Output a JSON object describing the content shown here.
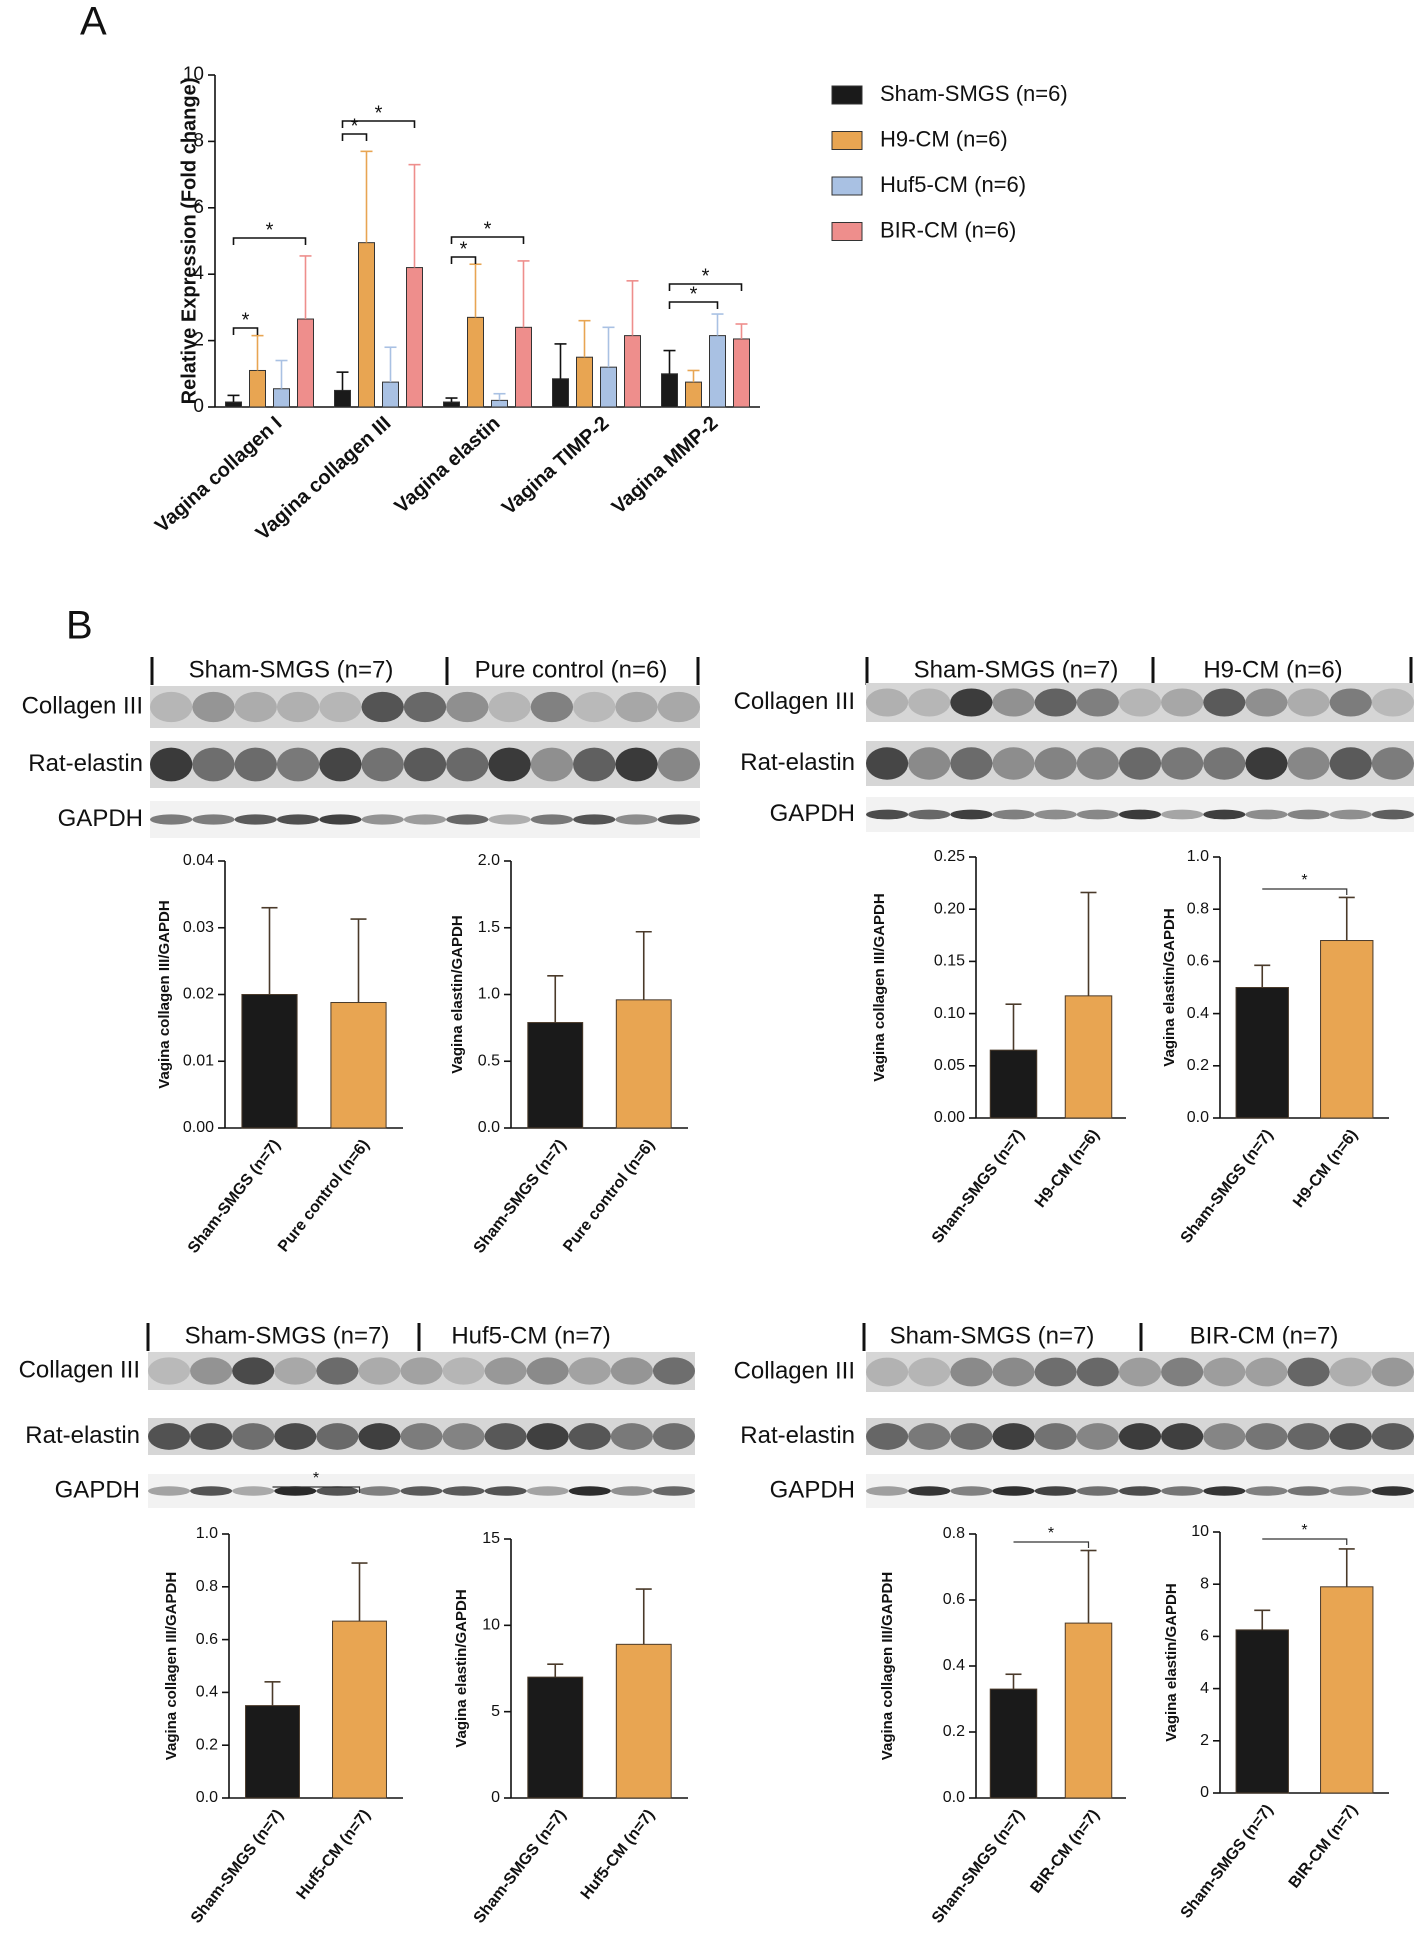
{
  "panel_labels": [
    "A",
    "B"
  ],
  "chart_data": [
    {
      "type": "bar",
      "ylabel": "Relative Expression (Fold change)",
      "categories": [
        "Vagina collagen I",
        "Vagina collagen III",
        "Vagina elastin",
        "Vagina TIMP-2",
        "Vagina MMP-2"
      ],
      "series": [
        {
          "name": "Sham-SMGS (n=6)",
          "color": "#1a1a1a",
          "values": [
            0.15,
            0.5,
            0.15,
            0.85,
            1.0
          ],
          "errors": [
            0.2,
            0.55,
            0.12,
            1.05,
            0.7
          ]
        },
        {
          "name": "H9-CM (n=6)",
          "color": "#e8a552",
          "values": [
            1.1,
            4.95,
            2.7,
            1.5,
            0.75
          ],
          "errors": [
            1.05,
            2.75,
            1.6,
            1.1,
            0.35
          ]
        },
        {
          "name": "Huf5-CM (n=6)",
          "color": "#a9c1e3",
          "values": [
            0.55,
            0.75,
            0.2,
            1.2,
            2.15
          ],
          "errors": [
            0.85,
            1.05,
            0.2,
            1.2,
            0.65
          ]
        },
        {
          "name": "BIR-CM (n=6)",
          "color": "#ee8e8c",
          "values": [
            2.65,
            4.2,
            2.4,
            2.15,
            2.05
          ],
          "errors": [
            1.9,
            3.1,
            2.0,
            1.65,
            0.45
          ]
        }
      ],
      "ylim": [
        0,
        10
      ],
      "yticks": [
        0,
        2,
        4,
        6,
        8,
        10
      ],
      "annotations": [
        "*",
        "*",
        "*",
        "*",
        "*",
        "*",
        "*",
        "*"
      ]
    },
    {
      "type": "bar",
      "ylabel": "Vagina collagen III/GAPDH",
      "categories": [
        "Sham-SMGS (n=7)",
        "Pure control (n=6)"
      ],
      "values": [
        0.02,
        0.0188
      ],
      "errors": [
        0.013,
        0.0125
      ],
      "colors": [
        "#1a1a1a",
        "#e8a552"
      ],
      "ylim": [
        0,
        0.04
      ],
      "yticks": [
        {
          "value": 0,
          "label": "0.00"
        },
        0.01,
        0.02,
        0.03,
        0.04
      ],
      "annotations": []
    },
    {
      "type": "bar",
      "ylabel": "Vagina elastin/GAPDH",
      "categories": [
        "Sham-SMGS (n=7)",
        "Pure control (n=6)"
      ],
      "values": [
        0.79,
        0.96
      ],
      "errors": [
        0.35,
        0.51
      ],
      "colors": [
        "#1a1a1a",
        "#e8a552"
      ],
      "ylim": [
        0,
        2
      ],
      "yticks": [
        {
          "value": 0,
          "label": "0.0"
        },
        0.5,
        {
          "value": 1,
          "label": "1.0"
        },
        1.5,
        {
          "value": 2,
          "label": "2.0"
        }
      ],
      "annotations": []
    },
    {
      "type": "bar",
      "ylabel": "Vagina collagen III/GAPDH",
      "categories": [
        "Sham-SMGS (n=7)",
        "H9-CM (n=6)"
      ],
      "values": [
        0.065,
        0.117
      ],
      "errors": [
        0.044,
        0.099
      ],
      "colors": [
        "#1a1a1a",
        "#e8a552"
      ],
      "ylim": [
        0,
        0.25
      ],
      "yticks": [
        {
          "value": 0,
          "label": "0.00"
        },
        0.05,
        {
          "value": 0.1,
          "label": "0.10"
        },
        0.15,
        {
          "value": 0.2,
          "label": "0.20"
        },
        0.25
      ],
      "annotations": []
    },
    {
      "type": "bar",
      "ylabel": "Vagina elastin/GAPDH",
      "categories": [
        "Sham-SMGS (n=7)",
        "H9-CM (n=6)"
      ],
      "values": [
        0.5,
        0.68
      ],
      "errors": [
        0.085,
        0.165
      ],
      "colors": [
        "#1a1a1a",
        "#e8a552"
      ],
      "ylim": [
        0,
        1
      ],
      "yticks": [
        {
          "value": 0,
          "label": "0.0"
        },
        0.2,
        0.4,
        0.6,
        0.8,
        {
          "value": 1,
          "label": "1.0"
        }
      ],
      "annotations": [
        "*"
      ]
    },
    {
      "type": "bar",
      "ylabel": "Vagina collagen III/GAPDH",
      "categories": [
        "Sham-SMGS (n=7)",
        "Huf5-CM (n=7)"
      ],
      "values": [
        0.35,
        0.67
      ],
      "errors": [
        0.09,
        0.22
      ],
      "colors": [
        "#1a1a1a",
        "#e8a552"
      ],
      "ylim": [
        0,
        1
      ],
      "yticks": [
        {
          "value": 0,
          "label": "0.0"
        },
        0.2,
        0.4,
        0.6,
        0.8,
        {
          "value": 1,
          "label": "1.0"
        }
      ],
      "annotations": [
        "*"
      ]
    },
    {
      "type": "bar",
      "ylabel": "Vagina elastin/GAPDH",
      "categories": [
        "Sham-SMGS (n=7)",
        "Huf5-CM (n=7)"
      ],
      "values": [
        7.0,
        8.9
      ],
      "errors": [
        0.75,
        3.2
      ],
      "colors": [
        "#1a1a1a",
        "#e8a552"
      ],
      "ylim": [
        0,
        15
      ],
      "yticks": [
        0,
        5,
        10,
        15
      ],
      "annotations": []
    },
    {
      "type": "bar",
      "ylabel": "Vagina collagen III/GAPDH",
      "categories": [
        "Sham-SMGS (n=7)",
        "BIR-CM (n=7)"
      ],
      "values": [
        0.33,
        0.53
      ],
      "errors": [
        0.045,
        0.22
      ],
      "colors": [
        "#1a1a1a",
        "#e8a552"
      ],
      "ylim": [
        0,
        0.8
      ],
      "yticks": [
        {
          "value": 0,
          "label": "0.0"
        },
        0.2,
        0.4,
        0.6,
        0.8
      ],
      "annotations": [
        "*"
      ]
    },
    {
      "type": "bar",
      "ylabel": "Vagina elastin/GAPDH",
      "categories": [
        "Sham-SMGS (n=7)",
        "BIR-CM (n=7)"
      ],
      "values": [
        6.25,
        7.9
      ],
      "errors": [
        0.75,
        1.45
      ],
      "colors": [
        "#1a1a1a",
        "#e8a552"
      ],
      "ylim": [
        0,
        10
      ],
      "yticks": [
        0,
        2,
        4,
        6,
        8,
        10
      ],
      "annotations": [
        "*"
      ]
    }
  ],
  "blots": [
    {
      "groups": [
        "Sham-SMGS (n=7)",
        "Pure control (n=6)"
      ],
      "rows": [
        "Collagen III",
        "Rat-elastin",
        "GAPDH"
      ]
    },
    {
      "groups": [
        "Sham-SMGS (n=7)",
        "H9-CM (n=6)"
      ],
      "rows": [
        "Collagen III",
        "Rat-elastin",
        "GAPDH"
      ]
    },
    {
      "groups": [
        "Sham-SMGS (n=7)",
        "Huf5-CM (n=7)"
      ],
      "rows": [
        "Collagen III",
        "Rat-elastin",
        "GAPDH"
      ]
    },
    {
      "groups": [
        "Sham-SMGS (n=7)",
        "BIR-CM (n=7)"
      ],
      "rows": [
        "Collagen III",
        "Rat-elastin",
        "GAPDH"
      ]
    }
  ]
}
